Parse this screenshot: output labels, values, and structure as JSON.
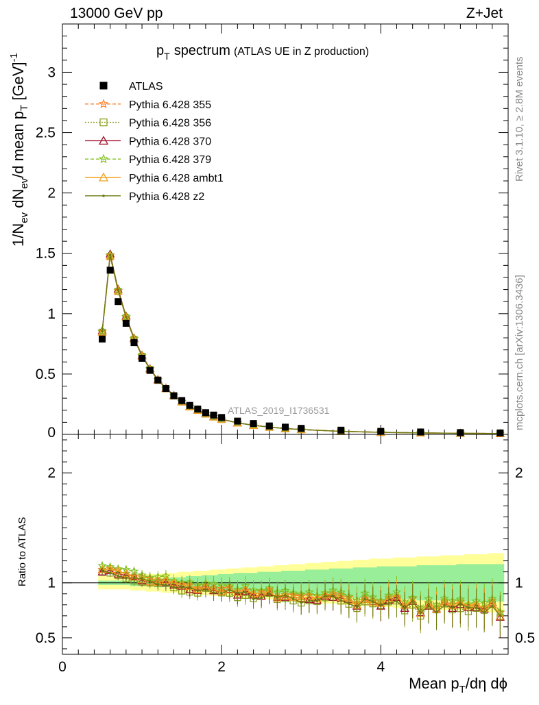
{
  "header": {
    "left": "13000 GeV pp",
    "right": "Z+Jet"
  },
  "side": {
    "top": "Rivet 3.1.10, ≥ 2.8M events",
    "bottom": "mcplots.cern.ch [arXiv:1306.3436]"
  },
  "watermark": "ATLAS_2019_I1736531",
  "chart_data": [
    {
      "type": "scatter",
      "title": "p_T spectrum (ATLAS UE in Z production)",
      "title_main": "p",
      "title_sub": "T",
      "title_main2": "spectrum",
      "title_small": "(ATLAS UE in Z production)",
      "ylabel": "1/N_ev dN_ev/d mean p_T [GeV]^-1",
      "ylabel_parts": [
        "1/N",
        "ev",
        " dN",
        "ev",
        "/d mean p",
        "T",
        " [GeV]",
        "-1"
      ],
      "xlim": [
        0,
        5.6
      ],
      "ylim": [
        0,
        3.4
      ],
      "yticks": [
        "0.5",
        "1",
        "1.5",
        "2",
        "2.5",
        "3"
      ],
      "clipped_tick": "0",
      "legend_position": "top-left",
      "series": [
        {
          "name": "ATLAS",
          "color": "#000000",
          "marker": "square",
          "x": [
            0.5,
            0.6,
            0.7,
            0.8,
            0.9,
            1.0,
            1.1,
            1.2,
            1.3,
            1.4,
            1.5,
            1.6,
            1.7,
            1.8,
            1.9,
            2.0,
            2.2,
            2.4,
            2.6,
            2.8,
            3.0,
            3.5,
            4.0,
            4.5,
            5.0,
            5.5
          ],
          "y": [
            0.79,
            1.36,
            1.1,
            0.92,
            0.76,
            0.63,
            0.53,
            0.45,
            0.38,
            0.32,
            0.28,
            0.24,
            0.21,
            0.18,
            0.16,
            0.14,
            0.11,
            0.09,
            0.07,
            0.06,
            0.05,
            0.035,
            0.025,
            0.02,
            0.015,
            0.012
          ]
        },
        {
          "name": "Pythia 6.428 355",
          "color": "#ff7f27",
          "marker": "star",
          "dash": "5,3"
        },
        {
          "name": "Pythia 6.428 356",
          "color": "#8aa020",
          "marker": "square-open",
          "dash": "2,2"
        },
        {
          "name": "Pythia 6.428 370",
          "color": "#a0102a",
          "marker": "triangle-open",
          "dash": ""
        },
        {
          "name": "Pythia 6.428 379",
          "color": "#80c020",
          "marker": "star",
          "dash": "5,3"
        },
        {
          "name": "Pythia 6.428 ambt1",
          "color": "#f0a020",
          "marker": "triangle-open",
          "dash": ""
        },
        {
          "name": "Pythia 6.428 z2",
          "color": "#6b7a10",
          "marker": "dot",
          "dash": ""
        }
      ],
      "mc_x": [
        0.5,
        0.6,
        0.7,
        0.8,
        0.9,
        1.0,
        1.1,
        1.2,
        1.3,
        1.4,
        1.5,
        1.6,
        1.7,
        1.8,
        1.9,
        2.0,
        2.2,
        2.4,
        2.6,
        2.8,
        3.0,
        3.5,
        4.0,
        4.5,
        5.0,
        5.5
      ],
      "mc_y": [
        0.85,
        1.48,
        1.19,
        0.97,
        0.79,
        0.65,
        0.54,
        0.45,
        0.38,
        0.32,
        0.27,
        0.23,
        0.2,
        0.17,
        0.145,
        0.125,
        0.095,
        0.075,
        0.06,
        0.048,
        0.04,
        0.025,
        0.017,
        0.012,
        0.009,
        0.007
      ]
    },
    {
      "type": "scatter",
      "ylabel": "Ratio to ATLAS",
      "xlabel": "Mean p_T/dη dϕ",
      "xlabel_parts": [
        "Mean p",
        "T",
        "/dη dϕ"
      ],
      "xlim": [
        0,
        5.6
      ],
      "ylim": [
        0.35,
        2.35
      ],
      "yticks": [
        "0.5",
        "1",
        "2"
      ],
      "xticks": [
        "0",
        "2",
        "4"
      ],
      "reference": 1,
      "x": [
        0.5,
        0.6,
        0.7,
        0.8,
        0.9,
        1.0,
        1.1,
        1.2,
        1.3,
        1.4,
        1.5,
        1.6,
        1.7,
        1.8,
        1.9,
        2.0,
        2.1,
        2.2,
        2.3,
        2.4,
        2.5,
        2.6,
        2.7,
        2.8,
        2.9,
        3.0,
        3.1,
        3.2,
        3.3,
        3.4,
        3.5,
        3.6,
        3.7,
        3.8,
        3.9,
        4.0,
        4.1,
        4.2,
        4.3,
        4.4,
        4.5,
        4.6,
        4.7,
        4.8,
        4.9,
        5.0,
        5.1,
        5.2,
        5.3,
        5.4,
        5.5
      ],
      "ratio_base": [
        1.1,
        1.1,
        1.09,
        1.07,
        1.05,
        1.03,
        1.01,
        1.0,
        1.01,
        0.98,
        0.96,
        0.95,
        0.93,
        0.96,
        0.94,
        0.92,
        0.93,
        0.9,
        0.92,
        0.88,
        0.89,
        0.91,
        0.86,
        0.88,
        0.87,
        0.85,
        0.86,
        0.84,
        0.87,
        0.88,
        0.86,
        0.84,
        0.8,
        0.85,
        0.82,
        0.8,
        0.84,
        0.86,
        0.78,
        0.83,
        0.72,
        0.8,
        0.76,
        0.82,
        0.78,
        0.8,
        0.77,
        0.79,
        0.76,
        0.81,
        0.7
      ],
      "band_inner_half": [
        0.02,
        0.02,
        0.02,
        0.02,
        0.03,
        0.03,
        0.03,
        0.04,
        0.04,
        0.05,
        0.05,
        0.06,
        0.06,
        0.07,
        0.07,
        0.08,
        0.08,
        0.09,
        0.09,
        0.09,
        0.1,
        0.1,
        0.1,
        0.11,
        0.11,
        0.11,
        0.12,
        0.12,
        0.12,
        0.13,
        0.13,
        0.13,
        0.14,
        0.14,
        0.14,
        0.15,
        0.15,
        0.15,
        0.15,
        0.15,
        0.16,
        0.16,
        0.16,
        0.16,
        0.16,
        0.17,
        0.17,
        0.17,
        0.17,
        0.17,
        0.17
      ],
      "band_outer_half": [
        0.06,
        0.06,
        0.06,
        0.06,
        0.07,
        0.07,
        0.08,
        0.08,
        0.09,
        0.09,
        0.1,
        0.1,
        0.11,
        0.11,
        0.12,
        0.12,
        0.13,
        0.13,
        0.14,
        0.14,
        0.15,
        0.15,
        0.16,
        0.16,
        0.17,
        0.17,
        0.18,
        0.18,
        0.19,
        0.19,
        0.2,
        0.2,
        0.21,
        0.21,
        0.22,
        0.22,
        0.22,
        0.23,
        0.23,
        0.23,
        0.24,
        0.24,
        0.24,
        0.25,
        0.25,
        0.25,
        0.26,
        0.26,
        0.26,
        0.27,
        0.27
      ]
    }
  ]
}
